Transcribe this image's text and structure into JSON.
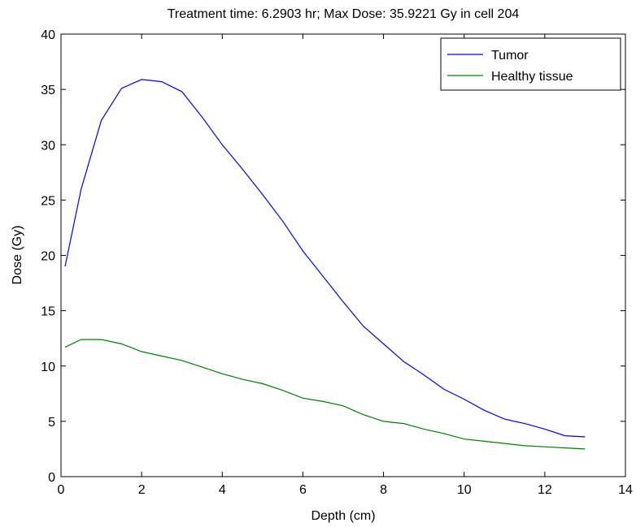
{
  "chart_data": {
    "type": "line",
    "title": "Treatment time: 6.2903 hr; Max Dose: 35.9221 Gy in cell 204",
    "xlabel": "Depth (cm)",
    "ylabel": "Dose (Gy)",
    "xlim": [
      0,
      14
    ],
    "ylim": [
      0,
      40
    ],
    "xticks": [
      "0",
      "2",
      "4",
      "6",
      "8",
      "10",
      "12",
      "14"
    ],
    "yticks": [
      "0",
      "5",
      "10",
      "15",
      "20",
      "25",
      "30",
      "35",
      "40"
    ],
    "grid": false,
    "legend_position": "top-right",
    "series": [
      {
        "name": "Tumor",
        "color": "#0000ff",
        "x": [
          0.1,
          0.5,
          1.0,
          1.5,
          2.0,
          2.5,
          3.0,
          3.5,
          4.0,
          4.5,
          5.0,
          5.5,
          6.0,
          6.5,
          7.0,
          7.5,
          8.0,
          8.5,
          9.0,
          9.5,
          10.0,
          10.5,
          11.0,
          11.5,
          12.0,
          12.5,
          13.0
        ],
        "y": [
          19.0,
          26.0,
          32.2,
          35.1,
          35.9,
          35.7,
          34.8,
          32.5,
          30.0,
          27.8,
          25.5,
          23.1,
          20.4,
          18.1,
          15.8,
          13.6,
          12.0,
          10.4,
          9.2,
          7.9,
          7.0,
          6.0,
          5.2,
          4.8,
          4.3,
          3.7,
          3.6
        ]
      },
      {
        "name": "Healthy tissue",
        "color": "#008000",
        "x": [
          0.1,
          0.5,
          1.0,
          1.5,
          2.0,
          2.5,
          3.0,
          3.5,
          4.0,
          4.5,
          5.0,
          5.5,
          6.0,
          6.5,
          7.0,
          7.5,
          8.0,
          8.5,
          9.0,
          9.5,
          10.0,
          10.5,
          11.0,
          11.5,
          12.0,
          12.5,
          13.0
        ],
        "y": [
          11.7,
          12.4,
          12.4,
          12.0,
          11.3,
          10.9,
          10.5,
          9.9,
          9.3,
          8.8,
          8.4,
          7.8,
          7.1,
          6.8,
          6.4,
          5.6,
          5.0,
          4.8,
          4.3,
          3.9,
          3.4,
          3.2,
          3.0,
          2.8,
          2.7,
          2.6,
          2.5
        ]
      }
    ]
  }
}
